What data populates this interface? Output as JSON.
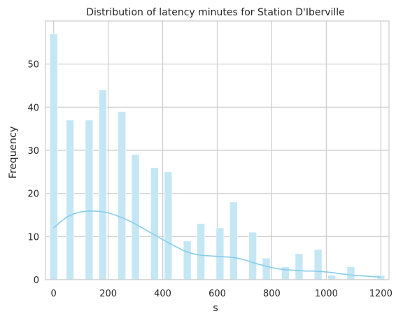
{
  "chart_data": {
    "type": "bar",
    "title": "Distribution of latency minutes for Station D'Iberville",
    "xlabel": "s",
    "ylabel": "Frequency",
    "xlim": [
      -30,
      1230
    ],
    "ylim": [
      0,
      60
    ],
    "x_ticks": [
      0,
      200,
      400,
      600,
      800,
      1000,
      1200
    ],
    "y_ticks": [
      0,
      10,
      20,
      30,
      40,
      50
    ],
    "grid": true,
    "bar_color": "#c5e7f4",
    "kde_color": "#87ceeb",
    "bins": [
      {
        "x": 0,
        "value": 57
      },
      {
        "x": 60,
        "value": 37
      },
      {
        "x": 130,
        "value": 37
      },
      {
        "x": 180,
        "value": 44
      },
      {
        "x": 250,
        "value": 39
      },
      {
        "x": 300,
        "value": 29
      },
      {
        "x": 370,
        "value": 26
      },
      {
        "x": 420,
        "value": 25
      },
      {
        "x": 490,
        "value": 9
      },
      {
        "x": 540,
        "value": 13
      },
      {
        "x": 610,
        "value": 12
      },
      {
        "x": 660,
        "value": 18
      },
      {
        "x": 730,
        "value": 11
      },
      {
        "x": 780,
        "value": 5
      },
      {
        "x": 850,
        "value": 3
      },
      {
        "x": 900,
        "value": 6
      },
      {
        "x": 970,
        "value": 7
      },
      {
        "x": 1020,
        "value": 1
      },
      {
        "x": 1090,
        "value": 3
      },
      {
        "x": 1200,
        "value": 1
      }
    ],
    "kde": {
      "x": [
        0,
        25,
        50,
        75,
        100,
        125,
        150,
        175,
        200,
        225,
        250,
        275,
        300,
        325,
        350,
        375,
        400,
        425,
        450,
        475,
        500,
        525,
        550,
        575,
        600,
        625,
        650,
        675,
        700,
        725,
        750,
        775,
        800,
        825,
        850,
        875,
        900,
        925,
        950,
        975,
        1000,
        1025,
        1050,
        1075,
        1100,
        1125,
        1150,
        1175,
        1200
      ],
      "y": [
        12.0,
        13.4,
        14.6,
        15.3,
        15.7,
        15.9,
        15.9,
        15.8,
        15.5,
        15.0,
        14.4,
        13.7,
        12.9,
        12.0,
        11.1,
        10.2,
        9.3,
        8.4,
        7.6,
        6.8,
        6.2,
        5.8,
        5.6,
        5.5,
        5.4,
        5.3,
        5.2,
        5.0,
        4.6,
        4.1,
        3.6,
        3.2,
        2.8,
        2.5,
        2.3,
        2.2,
        2.1,
        2.0,
        2.0,
        1.9,
        1.8,
        1.6,
        1.4,
        1.2,
        1.0,
        0.9,
        0.8,
        0.7,
        0.6
      ]
    }
  }
}
